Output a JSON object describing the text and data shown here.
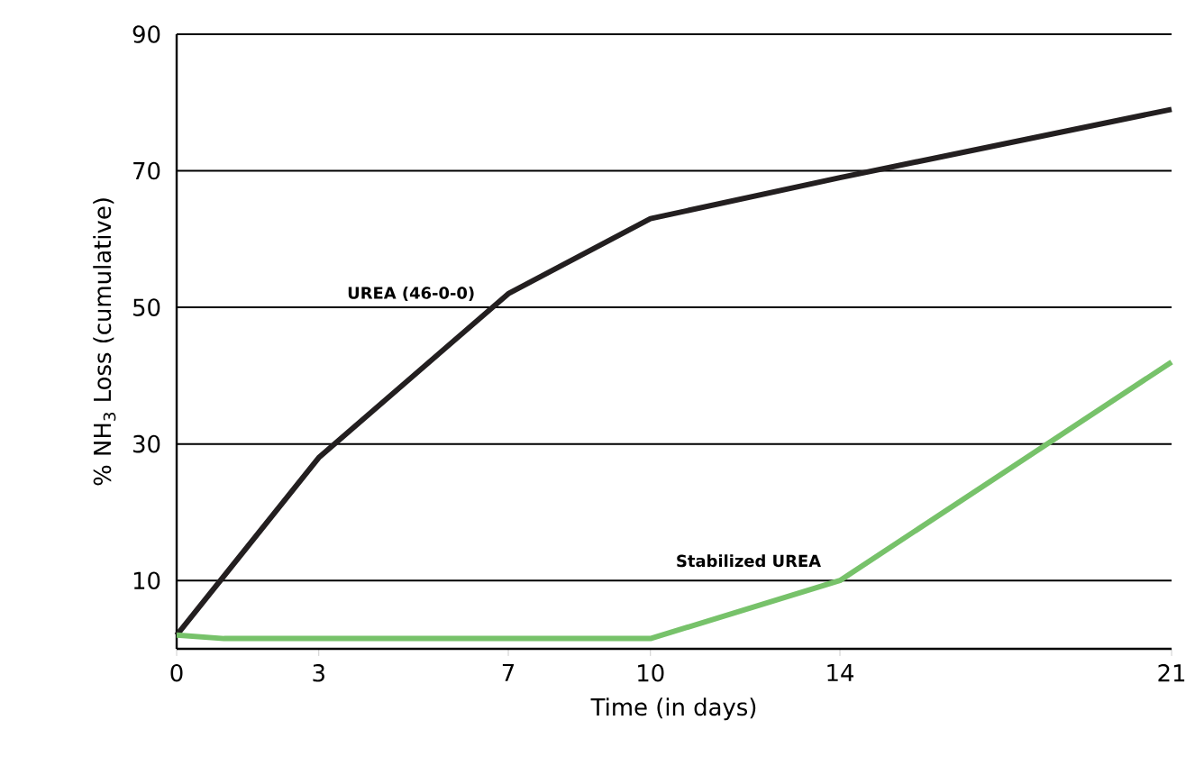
{
  "chart_data": {
    "type": "line",
    "xlabel": "Time (in days)",
    "ylabel": "% NH$_{3}$ Loss (cumulative)",
    "xlim": [
      0,
      21
    ],
    "xticks": [
      0,
      3,
      7,
      10,
      14,
      21
    ],
    "ylim": [
      0,
      90
    ],
    "yticks": [
      10,
      30,
      50,
      70,
      90
    ],
    "grid": "y",
    "marker": "none",
    "line_style": "solid",
    "series": [
      {
        "name": "UREA (46-0-0)",
        "color": "#231f20",
        "x": [
          0,
          3,
          7,
          10,
          14,
          21
        ],
        "values": [
          2,
          28,
          52,
          63,
          69,
          79
        ]
      },
      {
        "name": "Stabilized UREA",
        "color": "#77c26a",
        "x": [
          0,
          1,
          10,
          14,
          21
        ],
        "values": [
          2,
          1.5,
          1.5,
          10,
          42
        ]
      }
    ]
  }
}
